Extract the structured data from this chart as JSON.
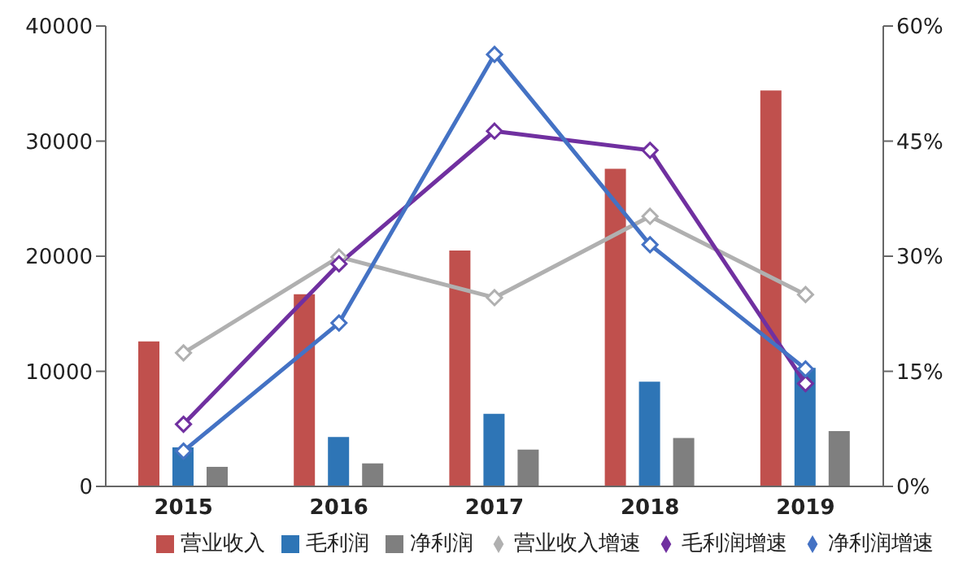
{
  "chart_data": {
    "type": "bar",
    "categories": [
      "2015",
      "2016",
      "2017",
      "2018",
      "2019"
    ],
    "series": [
      {
        "name": "营业收入",
        "color": "#c0504d",
        "values": [
          12600,
          16700,
          20500,
          27600,
          34400
        ]
      },
      {
        "name": "毛利润",
        "color": "#2e75b6",
        "values": [
          3400,
          4300,
          6300,
          9100,
          10300
        ]
      },
      {
        "name": "净利润",
        "color": "#7f7f7f",
        "values": [
          1700,
          2000,
          3200,
          4200,
          4800
        ]
      },
      {
        "name": "营业收入增速",
        "type": "line",
        "axis": "y2",
        "color": "#b0b0b0",
        "values": [
          17.4,
          29.9,
          24.6,
          35.2,
          25.0
        ]
      },
      {
        "name": "毛利润增速",
        "type": "line",
        "axis": "y2",
        "color": "#7030a0",
        "values": [
          8.1,
          29.0,
          46.3,
          43.8,
          13.4
        ]
      },
      {
        "name": "净利润增速",
        "type": "line",
        "axis": "y2",
        "color": "#4472c4",
        "values": [
          4.6,
          21.3,
          56.3,
          31.5,
          15.3
        ]
      }
    ],
    "ylim": [
      0,
      40000
    ],
    "yticks": [
      0,
      10000,
      20000,
      30000,
      40000
    ],
    "y2lim": [
      0,
      60
    ],
    "y2ticks": [
      {
        "value": 0,
        "label": "0%"
      },
      {
        "value": 15,
        "label": "15%"
      },
      {
        "value": 30,
        "label": "30%"
      },
      {
        "value": 45,
        "label": "45%"
      },
      {
        "value": 60,
        "label": "60%"
      }
    ],
    "marker": "diamond",
    "legend": "bottom",
    "grid": false
  }
}
